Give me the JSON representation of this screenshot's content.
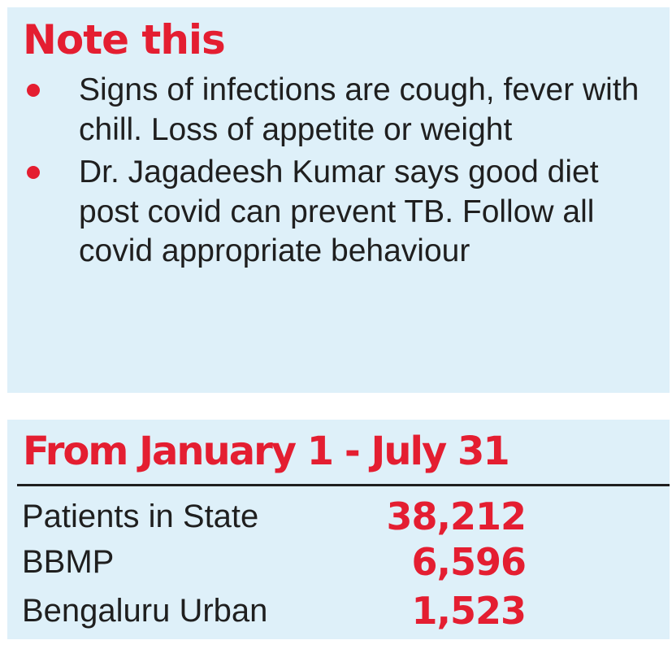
{
  "note": {
    "heading": "Note this",
    "bullets": [
      "Signs of infections are cough, fever with chill. Loss of appetite or weight",
      "Dr. Jagadeesh Kumar says good diet post covid can prevent TB. Follow all covid appropriate behaviour"
    ]
  },
  "stats": {
    "heading": "From January 1 - July 31",
    "rows": [
      {
        "label": "Patients in State",
        "value": "38,212"
      },
      {
        "label": "BBMP",
        "value": "6,596"
      },
      {
        "label": "Bengaluru Urban",
        "value": "1,523"
      }
    ]
  },
  "colors": {
    "panel_background": "#def0f9",
    "accent_red": "#e41e31",
    "body_text": "#1f1f1f"
  }
}
